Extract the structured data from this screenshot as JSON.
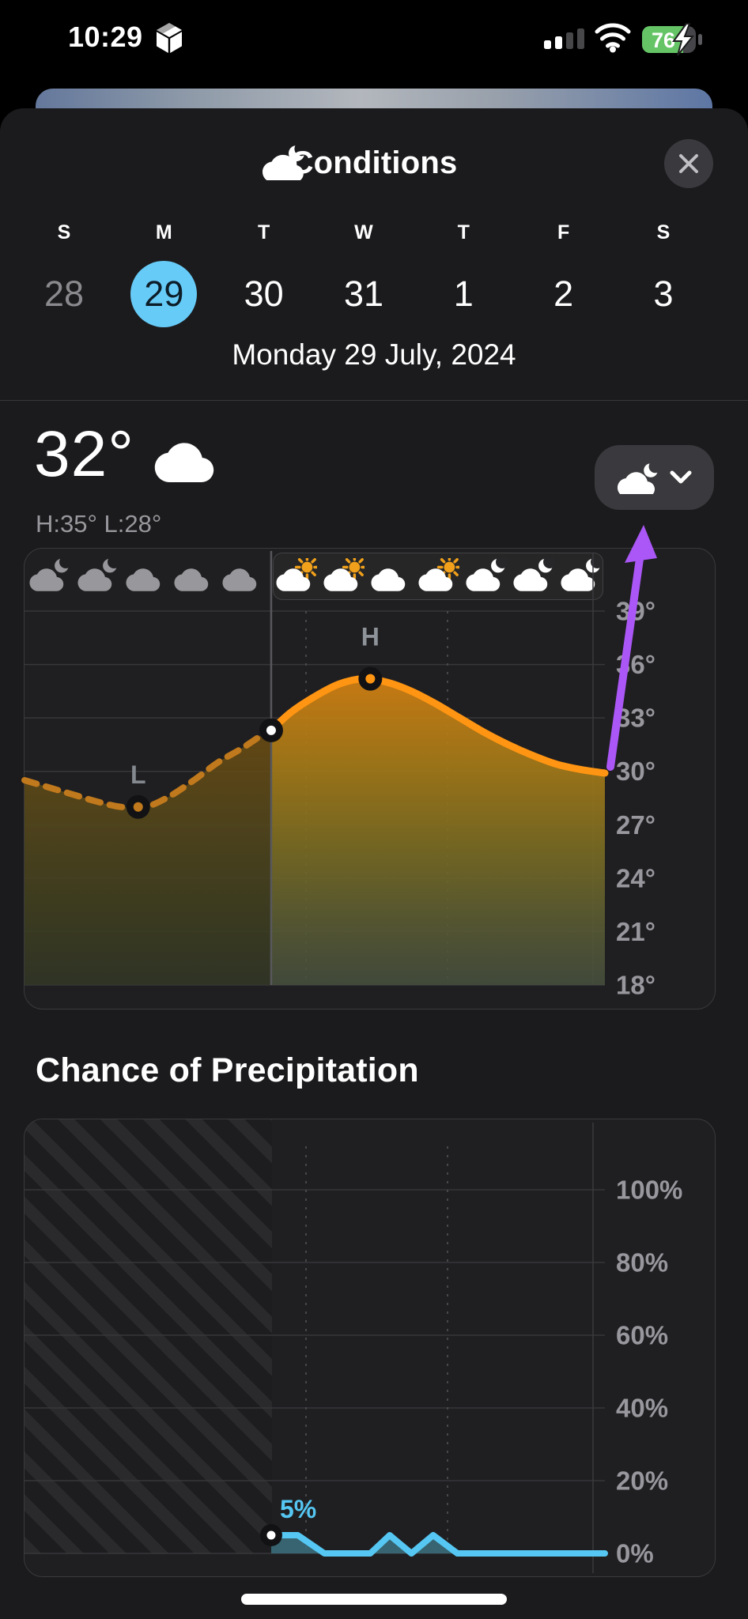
{
  "status_bar": {
    "time": "10:29",
    "battery_percent": "76",
    "battery_charging": true,
    "signal_bars_filled": 2,
    "signal_bars_total": 4
  },
  "header": {
    "title": "Conditions",
    "title_icon": "cloudy-icon",
    "close_icon": "x-icon"
  },
  "day_picker": {
    "letters": [
      "S",
      "M",
      "T",
      "W",
      "T",
      "F",
      "S"
    ],
    "dates": [
      {
        "label": "28",
        "state": "muted"
      },
      {
        "label": "29",
        "state": "selected"
      },
      {
        "label": "30",
        "state": "normal"
      },
      {
        "label": "31",
        "state": "normal"
      },
      {
        "label": "1",
        "state": "normal"
      },
      {
        "label": "2",
        "state": "normal"
      },
      {
        "label": "3",
        "state": "normal"
      }
    ],
    "selected_date_label": "Monday 29 July, 2024"
  },
  "current_conditions": {
    "temperature": "32°",
    "condition_icon": "cloud-icon",
    "high_low": "H:35° L:28°",
    "metric_dropdown_icon": "cloudy-icon"
  },
  "precip_section": {
    "title": "Chance of Precipitation"
  },
  "annotation": {
    "type": "purple-arrow",
    "points_at": "condition-dropdown",
    "color": "#ab57f7"
  },
  "colors": {
    "selected_day": "#67cbf8",
    "temp_line_future": "#ff9512",
    "temp_line_past": "#c0791c",
    "precip_line": "#55c7f2",
    "axis_label": "#97979d",
    "battery_green": "#65c466",
    "arrow_purple": "#ab57f7"
  },
  "chart_data": [
    {
      "type": "area",
      "name": "temperature_hourly",
      "unit": "°C",
      "x_hours_range": [
        0,
        24
      ],
      "series_hourly_temp_c": [
        29.5,
        29.1,
        28.7,
        28.3,
        28.0,
        28.0,
        28.6,
        29.5,
        30.5,
        31.3,
        32.2,
        33.3,
        34.2,
        34.9,
        35.2,
        35.0,
        34.5,
        33.8,
        33.0,
        32.2,
        31.5,
        30.9,
        30.4,
        30.1,
        29.9
      ],
      "now_hour": 10.2,
      "now_temp": 32.3,
      "high": {
        "label": "H",
        "hour": 14.3,
        "temp": 35.2
      },
      "low": {
        "label": "L",
        "hour": 4.7,
        "temp": 28.0
      },
      "y_ticks": [
        "39°",
        "36°",
        "33°",
        "30°",
        "27°",
        "24°",
        "21°",
        "18°"
      ],
      "y_range": [
        18,
        39
      ],
      "past_style": "dashed",
      "future_style": "solid",
      "condition_icons": [
        {
          "type": "cloud-moon",
          "past": true
        },
        {
          "type": "cloud-moon",
          "past": true
        },
        {
          "type": "cloud",
          "past": true
        },
        {
          "type": "cloud",
          "past": true
        },
        {
          "type": "cloud",
          "past": true
        },
        {
          "type": "sun-cloud",
          "past": false
        },
        {
          "type": "sun-cloud",
          "past": false
        },
        {
          "type": "cloud",
          "past": false
        },
        {
          "type": "sun-cloud",
          "past": false
        },
        {
          "type": "cloud-moon",
          "past": false
        },
        {
          "type": "cloud-moon",
          "past": false
        },
        {
          "type": "cloud-moon",
          "past": false
        }
      ]
    },
    {
      "type": "area",
      "name": "chance_of_precipitation",
      "unit": "%",
      "points_hour_pct": [
        [
          10.2,
          5
        ],
        [
          11.3,
          5
        ],
        [
          12.4,
          0
        ],
        [
          14.3,
          0
        ],
        [
          15.1,
          5
        ],
        [
          16.0,
          0
        ],
        [
          16.9,
          5
        ],
        [
          17.9,
          0
        ],
        [
          24,
          0
        ]
      ],
      "now_hour": 10.2,
      "now_value": 5,
      "now_label": "5%",
      "y_ticks": [
        "100%",
        "80%",
        "60%",
        "40%",
        "20%",
        "0%"
      ],
      "y_range": [
        0,
        100
      ],
      "past_region_hatched": true
    }
  ]
}
